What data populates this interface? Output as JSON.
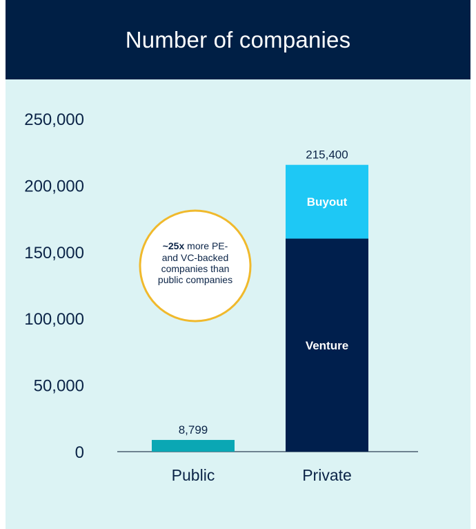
{
  "title": "Number of companies",
  "colors": {
    "header_bg": "#001f45",
    "plot_bg": "#dcf3f4",
    "public": "#0aa7b4",
    "venture": "#001f4d",
    "buyout": "#1ec8f5",
    "callout_border": "#f0b92c",
    "text": "#0b2447"
  },
  "chart_data": {
    "type": "bar",
    "stacked": true,
    "categories": [
      "Public",
      "Private"
    ],
    "series": [
      {
        "name": "",
        "values": [
          8799,
          0
        ]
      },
      {
        "name": "Venture",
        "values": [
          0,
          160000
        ]
      },
      {
        "name": "Buyout",
        "values": [
          0,
          55400
        ]
      }
    ],
    "totals": [
      "8,799",
      "215,400"
    ],
    "ylim": [
      0,
      250000
    ],
    "yticks": [
      0,
      50000,
      100000,
      150000,
      200000,
      250000
    ],
    "ytick_labels": [
      "0",
      "50,000",
      "100,000",
      "150,000",
      "200,000",
      "250,000"
    ],
    "grid": false,
    "annotation": {
      "bold": "~25x",
      "rest": " more PE-",
      "lines": [
        "and VC-backed",
        "companies than",
        "public companies"
      ]
    }
  }
}
